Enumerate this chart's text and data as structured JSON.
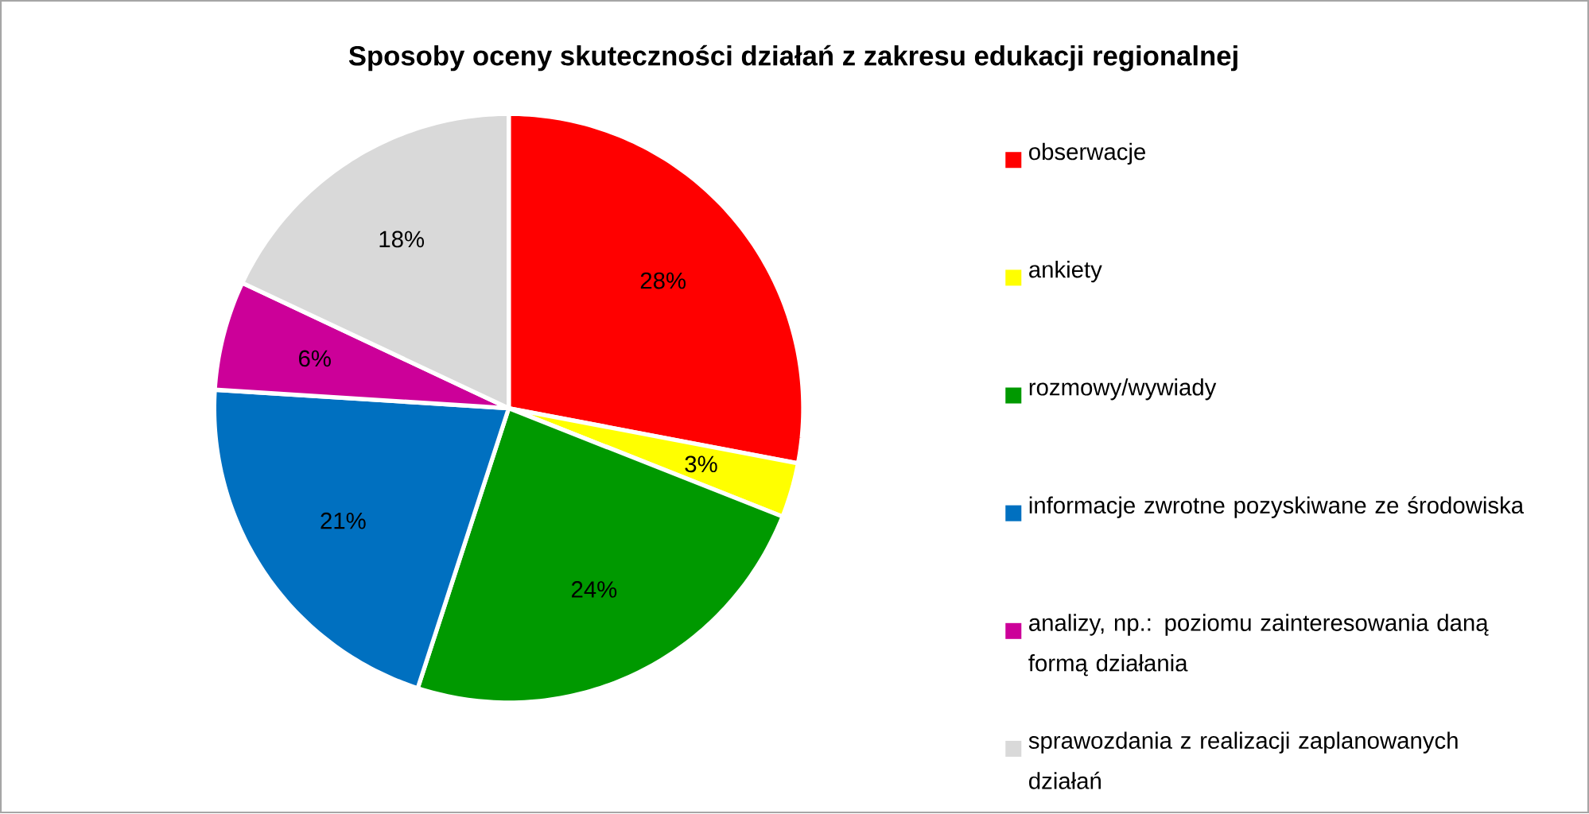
{
  "chart_data": {
    "type": "pie",
    "title": "Sposoby oceny skuteczności działań z zakresu edukacji regionalnej",
    "categories": [
      "obserwacje",
      "ankiety",
      "rozmowy/wywiady",
      "informacje zwrotne pozyskiwane ze środowiska",
      "analizy, np.: poziomu zainteresowania daną formą działania",
      "sprawozdania z realizacji zaplanowanych działań"
    ],
    "values": [
      28,
      3,
      24,
      21,
      6,
      18
    ],
    "value_labels": [
      "28%",
      "3%",
      "24%",
      "21%",
      "6%",
      "18%"
    ],
    "colors": [
      "#ff0000",
      "#ffff00",
      "#009900",
      "#0070c0",
      "#cc0099",
      "#d9d9d9"
    ],
    "legend": "right"
  }
}
